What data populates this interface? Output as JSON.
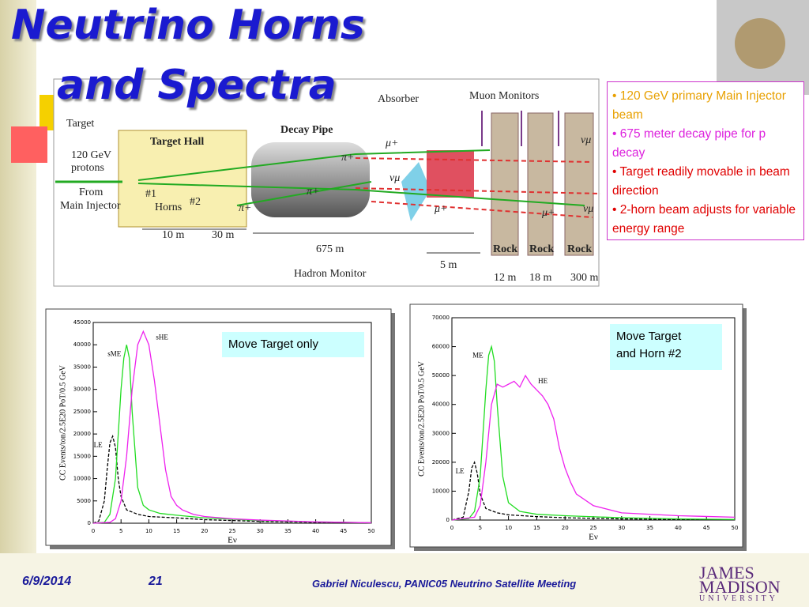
{
  "title": [
    "Neutrino Horns",
    "and Spectra"
  ],
  "diagram": {
    "target": "Target",
    "protons": [
      "120 GeV",
      "protons"
    ],
    "from": [
      "From",
      "Main Injector"
    ],
    "target_hall": "Target Hall",
    "decay_pipe": "Decay Pipe",
    "absorber": "Absorber",
    "muon_monitors": "Muon Monitors",
    "hadron_monitor": "Hadron Monitor",
    "horns": "Horns",
    "horn1": "#1",
    "horn2": "#2",
    "particles": [
      "π+",
      "π+",
      "π+",
      "μ+",
      "μ+",
      "μ+",
      "νμ",
      "νμ",
      "νμ"
    ],
    "rock": [
      "Rock",
      "Rock",
      "Rock"
    ],
    "distances": [
      "10 m",
      "30 m",
      "675 m",
      "5 m",
      "12 m",
      "18 m",
      "300 m"
    ]
  },
  "bullets": [
    "• 120 GeV primary Main Injector beam",
    "• 675 meter decay pipe for p decay",
    "• Target readily movable in beam  direction",
    "• 2-horn beam adjusts for variable energy range"
  ],
  "chart_data": [
    {
      "type": "line",
      "xlabel": "Eν",
      "ylabel": "CC Events/ton/2.5E20 PoT/0.5 GeV",
      "annotation": [
        "Move Target only"
      ],
      "xlim": [
        0,
        50
      ],
      "xticks": [
        0,
        5,
        10,
        15,
        20,
        25,
        30,
        35,
        40,
        45,
        50
      ],
      "ylim": [
        0,
        45000
      ],
      "yticks": [
        0,
        5000,
        10000,
        15000,
        20000,
        25000,
        30000,
        35000,
        40000,
        45000
      ],
      "series": [
        {
          "name": "LE",
          "color": "#000000",
          "linestyle": "dashed",
          "x": [
            0,
            1,
            2,
            2.5,
            3,
            3.5,
            4,
            4.5,
            5,
            6,
            8,
            10,
            15,
            20,
            30,
            40,
            50
          ],
          "values": [
            0,
            500,
            5000,
            12000,
            18000,
            19500,
            17000,
            10000,
            6000,
            3000,
            2000,
            1500,
            1200,
            800,
            400,
            200,
            100
          ]
        },
        {
          "name": "sME",
          "color": "#22dd22",
          "linestyle": "solid",
          "x": [
            0,
            2,
            3,
            4,
            5,
            5.5,
            6,
            6.5,
            7,
            8,
            9,
            10,
            12,
            15,
            20,
            30,
            40,
            50
          ],
          "values": [
            0,
            200,
            2000,
            10000,
            30000,
            37000,
            40000,
            37000,
            25000,
            8000,
            4000,
            3000,
            2200,
            1800,
            1200,
            600,
            300,
            100
          ]
        },
        {
          "name": "sHE",
          "color": "#ee22ee",
          "linestyle": "solid",
          "x": [
            0,
            3,
            4,
            5,
            6,
            7,
            8,
            9,
            10,
            11,
            12,
            13,
            14,
            15,
            16,
            18,
            20,
            25,
            30,
            40,
            50
          ],
          "values": [
            0,
            200,
            1000,
            5000,
            15000,
            30000,
            40000,
            43000,
            40000,
            32000,
            22000,
            12000,
            6000,
            4000,
            3000,
            2000,
            1500,
            1000,
            700,
            300,
            100
          ]
        }
      ]
    },
    {
      "type": "line",
      "xlabel": "Eν",
      "ylabel": "CC Events/ton/2.5E20 PoT/0.5 GeV",
      "annotation": [
        "Move Target",
        "and Horn #2"
      ],
      "xlim": [
        0,
        50
      ],
      "xticks": [
        0,
        5,
        10,
        15,
        20,
        25,
        30,
        35,
        40,
        45,
        50
      ],
      "ylim": [
        0,
        70000
      ],
      "yticks": [
        0,
        10000,
        20000,
        30000,
        40000,
        50000,
        60000,
        70000
      ],
      "series": [
        {
          "name": "LE",
          "color": "#000000",
          "linestyle": "dashed",
          "x": [
            0,
            2,
            3,
            3.5,
            4,
            4.5,
            5,
            6,
            8,
            10,
            15,
            20,
            30,
            50
          ],
          "values": [
            0,
            1000,
            10000,
            18000,
            20000,
            16000,
            9000,
            4000,
            2500,
            1800,
            1200,
            800,
            400,
            100
          ]
        },
        {
          "name": "ME",
          "color": "#22dd22",
          "linestyle": "solid",
          "x": [
            0,
            3,
            4,
            5,
            6,
            6.5,
            7,
            7.5,
            8,
            9,
            10,
            12,
            15,
            20,
            30,
            40,
            50
          ],
          "values": [
            0,
            500,
            3000,
            15000,
            45000,
            57000,
            60000,
            55000,
            40000,
            15000,
            6000,
            3000,
            2000,
            1500,
            800,
            400,
            200
          ]
        },
        {
          "name": "HE",
          "color": "#ee22ee",
          "linestyle": "solid",
          "x": [
            0,
            4,
            5,
            6,
            7,
            8,
            9,
            10,
            11,
            12,
            13,
            14,
            15,
            16,
            17,
            18,
            19,
            20,
            21,
            22,
            25,
            30,
            40,
            50
          ],
          "values": [
            0,
            1000,
            5000,
            20000,
            40000,
            47000,
            46000,
            47000,
            48000,
            46000,
            50000,
            47000,
            45000,
            43000,
            40000,
            35000,
            25000,
            18000,
            13000,
            9000,
            5000,
            2500,
            1500,
            1000
          ]
        }
      ]
    }
  ],
  "footer": {
    "date": "6/9/2014",
    "page": "21",
    "credit": "Gabriel Niculescu, PANIC05 Neutrino Satellite Meeting",
    "university": [
      "JAMES",
      "MADISON",
      "UNIVERSITY"
    ]
  }
}
